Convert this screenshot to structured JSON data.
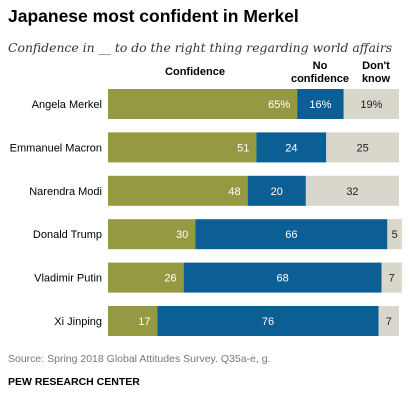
{
  "title": "Japanese most confident in Merkel",
  "subtitle": "Confidence in __ to do the right thing regarding world affairs",
  "column_headers": {
    "confidence": "Confidence",
    "no_confidence_line1": "No",
    "no_confidence_line2": "confidence",
    "dont_know_line1": "Don't",
    "dont_know_line2": "know"
  },
  "colors": {
    "confidence": "#959a42",
    "no_confidence": "#0c5f94",
    "dont_know": "#d9d6cc",
    "label_on_dark": "#ffffff",
    "label_on_light": "#222222"
  },
  "chart_data": {
    "type": "bar",
    "orientation": "horizontal",
    "stacked": true,
    "categories": [
      "Angela Merkel",
      "Emmanuel Macron",
      "Narendra Modi",
      "Donald Trump",
      "Vladimir Putin",
      "Xi Jinping"
    ],
    "series": [
      {
        "name": "Confidence",
        "values": [
          65,
          51,
          48,
          30,
          26,
          17
        ],
        "labels": [
          "65%",
          "51",
          "48",
          "30",
          "26",
          "17"
        ]
      },
      {
        "name": "No confidence",
        "values": [
          16,
          24,
          20,
          66,
          68,
          76
        ],
        "labels": [
          "16%",
          "24",
          "20",
          "66",
          "68",
          "76"
        ]
      },
      {
        "name": "Don't know",
        "values": [
          19,
          25,
          32,
          5,
          7,
          7
        ],
        "labels": [
          "19%",
          "25",
          "32",
          "5",
          "7",
          "7"
        ]
      }
    ],
    "xlim": [
      0,
      100
    ]
  },
  "source": "Source: Spring 2018 Global Attitudes Survey. Q35a-e, g.",
  "brand": "PEW RESEARCH CENTER"
}
